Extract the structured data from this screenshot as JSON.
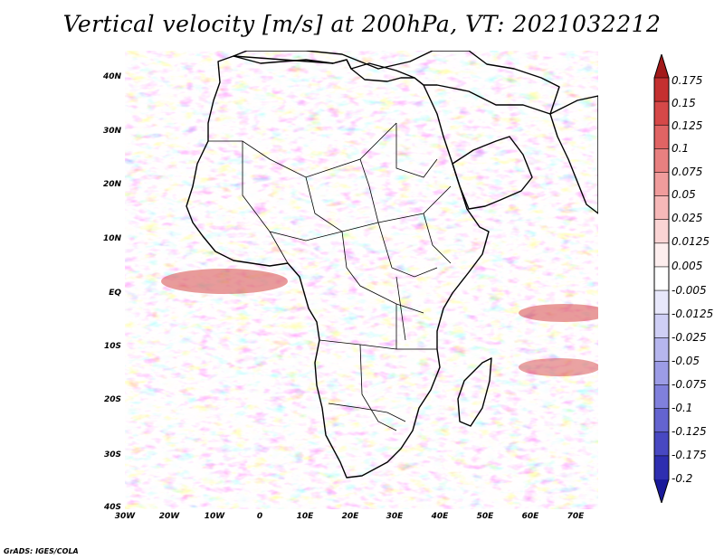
{
  "title": "Vertical velocity [m/s] at 200hPa, VT: 2021032212",
  "footer": "GrADS: IGES/COLA",
  "lat_labels": [
    "40N",
    "30N",
    "20N",
    "10N",
    "EQ",
    "10S",
    "20S",
    "30S",
    "40S"
  ],
  "lon_labels": [
    "30W",
    "20W",
    "10W",
    "0",
    "10E",
    "20E",
    "30E",
    "40E",
    "50E",
    "60E",
    "70E"
  ],
  "colorbar": {
    "labels": [
      "0.175",
      "0.15",
      "0.125",
      "0.1",
      "0.075",
      "0.05",
      "0.025",
      "0.0125",
      "0.005",
      "-0.005",
      "-0.0125",
      "-0.025",
      "-0.05",
      "-0.075",
      "-0.1",
      "-0.125",
      "-0.175",
      "-0.2"
    ],
    "colors": [
      "#a31a1a",
      "#c43030",
      "#d64848",
      "#e06464",
      "#e88080",
      "#f09c9c",
      "#f6b8b8",
      "#fad4d4",
      "#fdeeee",
      "#ffffff",
      "#e8e8fb",
      "#cfcff5",
      "#b6b6ee",
      "#9c9ce6",
      "#8080dc",
      "#6464d0",
      "#4848c2",
      "#2e2eb0",
      "#1a1a9a"
    ]
  }
}
